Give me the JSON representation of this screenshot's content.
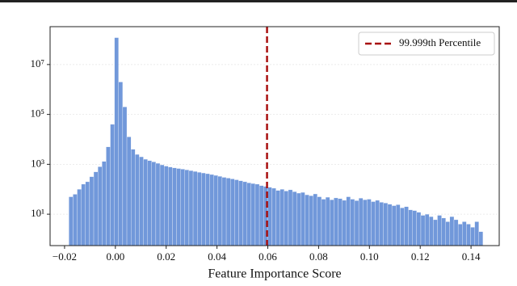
{
  "chart_data": {
    "type": "histogram",
    "xlabel": "Feature Importance Score",
    "bins": [
      -0.0183,
      -0.01667,
      -0.01504,
      -0.01341,
      -0.01178,
      -0.01015,
      -0.00852,
      -0.00689,
      -0.00526,
      -0.00363,
      -0.002,
      -0.00037,
      0.00126,
      0.00289,
      0.00452,
      0.00615,
      0.00778,
      0.00941,
      0.01104,
      0.01267,
      0.0143,
      0.01593,
      0.01756,
      0.01919,
      0.02082,
      0.02245,
      0.02408,
      0.02571,
      0.02734,
      0.02897,
      0.0306,
      0.03223,
      0.03386,
      0.03549,
      0.03712,
      0.03875,
      0.04038,
      0.04201,
      0.04364,
      0.04527,
      0.0469,
      0.04853,
      0.05016,
      0.05179,
      0.05342,
      0.05505,
      0.05668,
      0.05831,
      0.05994,
      0.06157,
      0.0632,
      0.06483,
      0.06646,
      0.06809,
      0.06972,
      0.07135,
      0.07298,
      0.07461,
      0.07624,
      0.07787,
      0.0795,
      0.08113,
      0.08276,
      0.08439,
      0.08602,
      0.08765,
      0.08928,
      0.09091,
      0.09254,
      0.09417,
      0.0958,
      0.09743,
      0.09906,
      0.10069,
      0.10232,
      0.10395,
      0.10558,
      0.10721,
      0.10884,
      0.11047,
      0.1121,
      0.11373,
      0.11536,
      0.11699,
      0.11862,
      0.12025,
      0.12188,
      0.12351,
      0.12514,
      0.12677,
      0.1284,
      0.13003,
      0.13166,
      0.13329,
      0.13492,
      0.13655,
      0.13818,
      0.13981,
      0.14144,
      0.14307,
      0.1447
    ],
    "values": [
      50,
      63,
      100,
      160,
      200,
      320,
      500,
      800,
      1300,
      5000,
      40000,
      120000000,
      2000000,
      200000,
      12600,
      4000,
      2500,
      2000,
      1600,
      1400,
      1250,
      1100,
      950,
      850,
      780,
      720,
      680,
      640,
      600,
      560,
      520,
      480,
      450,
      420,
      390,
      360,
      330,
      300,
      280,
      260,
      240,
      220,
      200,
      180,
      170,
      160,
      140,
      130,
      120,
      110,
      90,
      100,
      85,
      95,
      80,
      70,
      75,
      60,
      55,
      65,
      50,
      40,
      48,
      38,
      45,
      42,
      36,
      50,
      40,
      35,
      44,
      38,
      40,
      32,
      36,
      30,
      28,
      25,
      22,
      24,
      18,
      20,
      15,
      14,
      12,
      9,
      10,
      8,
      6,
      9,
      7,
      5,
      8,
      6,
      4,
      5,
      4,
      3,
      5,
      2
    ],
    "color": "#7198da",
    "xlim": [
      -0.0257,
      0.1511
    ],
    "xticks": [
      {
        "value": -0.02,
        "label": "−0.02"
      },
      {
        "value": 0,
        "label": "0.00"
      },
      {
        "value": 0.02,
        "label": "0.02"
      },
      {
        "value": 0.04,
        "label": "0.04"
      },
      {
        "value": 0.06,
        "label": "0.06"
      },
      {
        "value": 0.08,
        "label": "0.08"
      },
      {
        "value": 0.1,
        "label": "0.10"
      },
      {
        "value": 0.12,
        "label": "0.12"
      },
      {
        "value": 0.14,
        "label": "0.14"
      }
    ],
    "ylim": [
      0.55,
      330000000
    ],
    "yticks": [
      {
        "value": 10,
        "label": "10¹"
      },
      {
        "value": 1000,
        "label": "10³"
      },
      {
        "value": 100000,
        "label": "10⁵"
      },
      {
        "value": 10000000,
        "label": "10⁷"
      }
    ],
    "log_y": true,
    "grid": true,
    "legend": "upper right",
    "vline": {
      "x": 0.0597,
      "name": "99.999th Percentile",
      "color": "#a80f0f"
    }
  }
}
